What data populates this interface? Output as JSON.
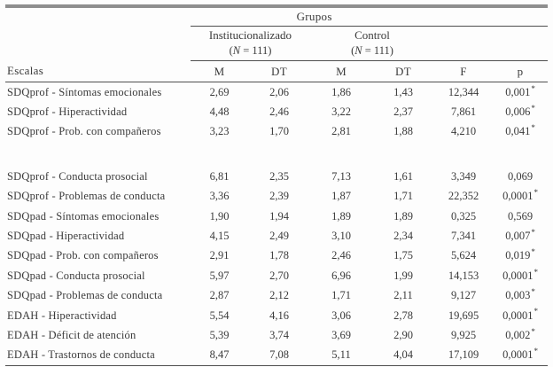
{
  "colors": {
    "background": "#fdfdfd",
    "text": "#3a3a3a",
    "thin_rule": "#4f4f4f",
    "thick_rule": "#8e8e8e"
  },
  "table": {
    "grupos_label": "Grupos",
    "escalas_label": "Escalas",
    "groups": [
      {
        "name": "Institucionalizado",
        "n": "(N = 111)"
      },
      {
        "name": "Control",
        "n": "(N = 111)"
      }
    ],
    "stat_headers": [
      "M",
      "DT",
      "M",
      "DT",
      "F",
      "p"
    ],
    "rows": [
      {
        "escala": "SDQprof - Síntomas emocionales",
        "m1": "2,69",
        "dt1": "2,06",
        "m2": "1,86",
        "dt2": "1,43",
        "f": "12,344",
        "p": "0,001*"
      },
      {
        "escala": "SDQprof - Hiperactividad",
        "m1": "4,48",
        "dt1": "2,46",
        "m2": "3,22",
        "dt2": "2,37",
        "f": "7,861",
        "p": "0,006*"
      },
      {
        "escala": "SDQprof - Prob. con compañeros",
        "m1": "3,23",
        "dt1": "1,70",
        "m2": "2,81",
        "dt2": "1,88",
        "f": "4,210",
        "p": "0,041*"
      },
      {
        "spacer": true
      },
      {
        "escala": "SDQprof - Conducta prosocial",
        "m1": "6,81",
        "dt1": "2,35",
        "m2": "7,13",
        "dt2": "1,61",
        "f": "3,349",
        "p": "0,069"
      },
      {
        "escala": "SDQprof - Problemas de conducta",
        "m1": "3,36",
        "dt1": "2,39",
        "m2": "1,87",
        "dt2": "1,71",
        "f": "22,352",
        "p": "0,0001*"
      },
      {
        "escala": "SDQpad - Síntomas emocionales",
        "m1": "1,90",
        "dt1": "1,94",
        "m2": "1,89",
        "dt2": "1,89",
        "f": "0,325",
        "p": "0,569"
      },
      {
        "escala": "SDQpad - Hiperactividad",
        "m1": "4,15",
        "dt1": "2,49",
        "m2": "3,10",
        "dt2": "2,34",
        "f": "7,341",
        "p": "0,007*"
      },
      {
        "escala": "SDQpad - Prob. con compañeros",
        "m1": "2,91",
        "dt1": "1,78",
        "m2": "2,46",
        "dt2": "1,75",
        "f": "5,624",
        "p": "0,019*"
      },
      {
        "escala": "SDQpad - Conducta prosocial",
        "m1": "5,97",
        "dt1": "2,70",
        "m2": "6,96",
        "dt2": "1,99",
        "f": "14,153",
        "p": "0,0001*"
      },
      {
        "escala": "SDQpad - Problemas de conducta",
        "m1": "2,87",
        "dt1": "2,12",
        "m2": "1,71",
        "dt2": "2,11",
        "f": "9,127",
        "p": "0,003*"
      },
      {
        "escala": "EDAH - Hiperactividad",
        "m1": "5,54",
        "dt1": "4,16",
        "m2": "3,06",
        "dt2": "2,78",
        "f": "19,695",
        "p": "0,0001*"
      },
      {
        "escala": "EDAH - Déficit de atención",
        "m1": "5,39",
        "dt1": "3,74",
        "m2": "3,69",
        "dt2": "2,90",
        "f": "9,925",
        "p": "0,002*"
      },
      {
        "escala": "EDAH - Trastornos de conducta",
        "m1": "8,47",
        "dt1": "7,08",
        "m2": "5,11",
        "dt2": "4,04",
        "f": "17,109",
        "p": "0,0001*"
      }
    ]
  }
}
